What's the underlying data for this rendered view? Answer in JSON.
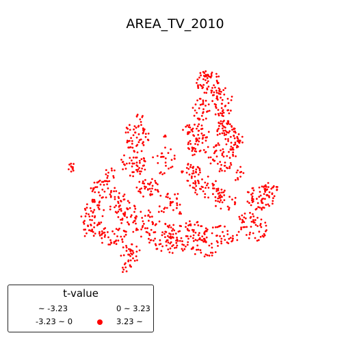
{
  "title": "AREA_TV_2010",
  "legend": {
    "title": "t-value",
    "entries": [
      {
        "label": "~ -3.23",
        "color": "none"
      },
      {
        "label": "0 ~ 3.23",
        "color": "none"
      },
      {
        "label": "-3.23 ~ 0",
        "color": "none"
      },
      {
        "label": "3.23 ~",
        "color": "#ff0000"
      }
    ]
  },
  "point_color": "#ff0000"
}
